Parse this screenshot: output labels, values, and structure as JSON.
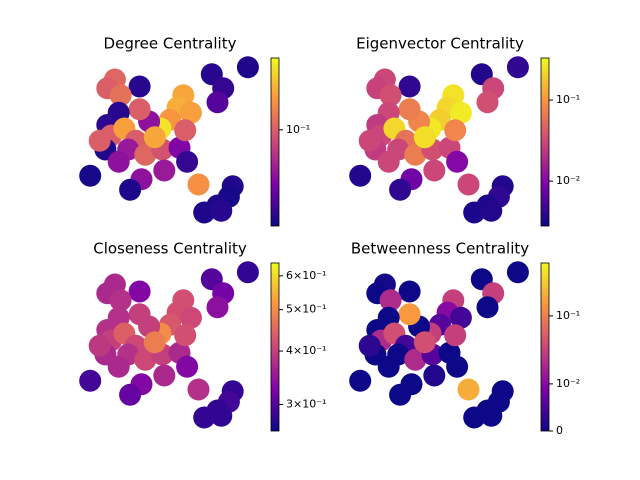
{
  "chart_data": [
    {
      "type": "scatter",
      "title": "Degree Centrality",
      "colormap": "plasma",
      "cscale": "log",
      "clim": [
        0.0187,
        0.35
      ],
      "cticks": [
        {
          "value": 0.1,
          "label": "10⁻¹"
        }
      ],
      "x": [
        0.91,
        0.72,
        0.78,
        0.75,
        0.34,
        0.21,
        0.17,
        0.24,
        0.57,
        0.54,
        0.61,
        0.5,
        0.45,
        0.39,
        0.34,
        0.23,
        0.17,
        0.19,
        0.26,
        0.32,
        0.28,
        0.16,
        0.23,
        0.37,
        0.46,
        0.55,
        0.58,
        0.47,
        0.35,
        0.29,
        0.08,
        0.59,
        0.65,
        0.83,
        0.81,
        0.75,
        0.68,
        0.77,
        0.13,
        0.42
      ],
      "y": [
        0.93,
        0.89,
        0.81,
        0.73,
        0.82,
        0.86,
        0.81,
        0.77,
        0.77,
        0.7,
        0.67,
        0.63,
        0.58,
        0.62,
        0.69,
        0.67,
        0.6,
        0.54,
        0.58,
        0.51,
        0.46,
        0.46,
        0.39,
        0.43,
        0.46,
        0.47,
        0.57,
        0.34,
        0.29,
        0.23,
        0.31,
        0.39,
        0.26,
        0.25,
        0.19,
        0.14,
        0.1,
        0.11,
        0.51,
        0.53
      ],
      "values": [
        0.021,
        0.022,
        0.024,
        0.03,
        0.022,
        0.11,
        0.1,
        0.12,
        0.19,
        0.2,
        0.18,
        0.17,
        0.3,
        0.045,
        0.1,
        0.022,
        0.023,
        0.1,
        0.18,
        0.1,
        0.05,
        0.021,
        0.045,
        0.11,
        0.09,
        0.04,
        0.1,
        0.05,
        0.045,
        0.021,
        0.02,
        0.024,
        0.16,
        0.021,
        0.02,
        0.021,
        0.021,
        0.022,
        0.1,
        0.19
      ]
    },
    {
      "type": "scatter",
      "title": "Eigenvector Centrality",
      "colormap": "plasma",
      "cscale": "log",
      "clim": [
        0.0028,
        0.33
      ],
      "cticks": [
        {
          "value": 0.01,
          "label": "10⁻²"
        },
        {
          "value": 0.1,
          "label": "10⁻¹"
        }
      ],
      "x": [
        0.91,
        0.72,
        0.78,
        0.75,
        0.34,
        0.21,
        0.17,
        0.24,
        0.57,
        0.54,
        0.61,
        0.5,
        0.45,
        0.39,
        0.34,
        0.23,
        0.17,
        0.19,
        0.26,
        0.32,
        0.28,
        0.16,
        0.23,
        0.37,
        0.46,
        0.55,
        0.58,
        0.47,
        0.35,
        0.29,
        0.08,
        0.59,
        0.65,
        0.83,
        0.81,
        0.75,
        0.68,
        0.77,
        0.13,
        0.42
      ],
      "y": [
        0.93,
        0.89,
        0.81,
        0.73,
        0.82,
        0.86,
        0.81,
        0.77,
        0.77,
        0.7,
        0.67,
        0.63,
        0.58,
        0.62,
        0.69,
        0.67,
        0.6,
        0.54,
        0.58,
        0.51,
        0.46,
        0.46,
        0.39,
        0.43,
        0.46,
        0.47,
        0.57,
        0.34,
        0.29,
        0.23,
        0.31,
        0.39,
        0.26,
        0.25,
        0.19,
        0.14,
        0.1,
        0.11,
        0.51,
        0.53
      ],
      "values": [
        0.004,
        0.0035,
        0.03,
        0.035,
        0.004,
        0.03,
        0.028,
        0.035,
        0.25,
        0.22,
        0.28,
        0.2,
        0.27,
        0.08,
        0.07,
        0.03,
        0.025,
        0.03,
        0.22,
        0.06,
        0.03,
        0.025,
        0.03,
        0.07,
        0.035,
        0.03,
        0.08,
        0.03,
        0.008,
        0.004,
        0.0035,
        0.01,
        0.03,
        0.0035,
        0.004,
        0.0033,
        0.0032,
        0.0035,
        0.03,
        0.24
      ]
    },
    {
      "type": "scatter",
      "title": "Closeness Centrality",
      "colormap": "plasma",
      "cscale": "log",
      "clim": [
        0.26,
        0.643
      ],
      "cticks": [
        {
          "value": 0.3,
          "label": "3×10⁻¹"
        },
        {
          "value": 0.4,
          "label": "4×10⁻¹"
        },
        {
          "value": 0.5,
          "label": "5×10⁻¹"
        },
        {
          "value": 0.6,
          "label": "6×10⁻¹"
        }
      ],
      "x": [
        0.91,
        0.72,
        0.78,
        0.75,
        0.34,
        0.21,
        0.17,
        0.24,
        0.57,
        0.54,
        0.61,
        0.5,
        0.45,
        0.39,
        0.34,
        0.23,
        0.17,
        0.19,
        0.26,
        0.32,
        0.28,
        0.16,
        0.23,
        0.37,
        0.46,
        0.55,
        0.58,
        0.47,
        0.35,
        0.29,
        0.08,
        0.59,
        0.65,
        0.83,
        0.81,
        0.75,
        0.68,
        0.77,
        0.13,
        0.42
      ],
      "y": [
        0.93,
        0.89,
        0.81,
        0.73,
        0.82,
        0.86,
        0.81,
        0.77,
        0.77,
        0.7,
        0.67,
        0.63,
        0.58,
        0.62,
        0.69,
        0.67,
        0.6,
        0.54,
        0.58,
        0.51,
        0.46,
        0.46,
        0.39,
        0.43,
        0.46,
        0.47,
        0.57,
        0.34,
        0.29,
        0.23,
        0.31,
        0.39,
        0.26,
        0.25,
        0.19,
        0.14,
        0.1,
        0.11,
        0.51,
        0.53
      ],
      "values": [
        0.28,
        0.3,
        0.32,
        0.34,
        0.33,
        0.37,
        0.37,
        0.38,
        0.42,
        0.42,
        0.41,
        0.43,
        0.5,
        0.4,
        0.4,
        0.38,
        0.38,
        0.4,
        0.44,
        0.41,
        0.38,
        0.37,
        0.37,
        0.41,
        0.4,
        0.37,
        0.42,
        0.37,
        0.33,
        0.31,
        0.29,
        0.33,
        0.38,
        0.28,
        0.29,
        0.28,
        0.28,
        0.28,
        0.39,
        0.48
      ]
    },
    {
      "type": "scatter",
      "title": "Betweenness Centrality",
      "colormap": "plasma",
      "cscale": "symlog",
      "linthresh": 0.003,
      "linscale": 0.17,
      "clim": [
        0,
        0.6
      ],
      "cticks": [
        0,
        {
          "value": 0.01,
          "label": "10⁻²"
        },
        {
          "value": 0.1,
          "label": "10⁻¹"
        }
      ],
      "x": [
        0.91,
        0.72,
        0.78,
        0.75,
        0.34,
        0.21,
        0.17,
        0.24,
        0.57,
        0.54,
        0.61,
        0.5,
        0.45,
        0.39,
        0.34,
        0.23,
        0.17,
        0.19,
        0.26,
        0.32,
        0.28,
        0.16,
        0.23,
        0.37,
        0.46,
        0.55,
        0.58,
        0.47,
        0.35,
        0.29,
        0.08,
        0.59,
        0.65,
        0.83,
        0.81,
        0.75,
        0.68,
        0.77,
        0.13,
        0.42
      ],
      "y": [
        0.93,
        0.89,
        0.81,
        0.73,
        0.82,
        0.86,
        0.81,
        0.77,
        0.77,
        0.7,
        0.67,
        0.63,
        0.58,
        0.62,
        0.69,
        0.67,
        0.6,
        0.54,
        0.58,
        0.51,
        0.46,
        0.46,
        0.39,
        0.43,
        0.46,
        0.47,
        0.57,
        0.34,
        0.29,
        0.23,
        0.31,
        0.39,
        0.26,
        0.25,
        0.19,
        0.14,
        0.1,
        0.11,
        0.51,
        0.53
      ],
      "values": [
        0,
        0,
        0.03,
        0,
        0,
        0.001,
        0,
        0.02,
        0.03,
        0.01,
        0.004,
        0.005,
        0.03,
        0,
        0.15,
        0,
        0,
        0.02,
        0.04,
        0.004,
        0,
        0,
        0,
        0.02,
        0.005,
        0,
        0.03,
        0.002,
        0,
        0,
        0,
        0,
        0.2,
        0,
        0,
        0,
        0,
        0,
        0.003,
        0.04
      ]
    }
  ]
}
